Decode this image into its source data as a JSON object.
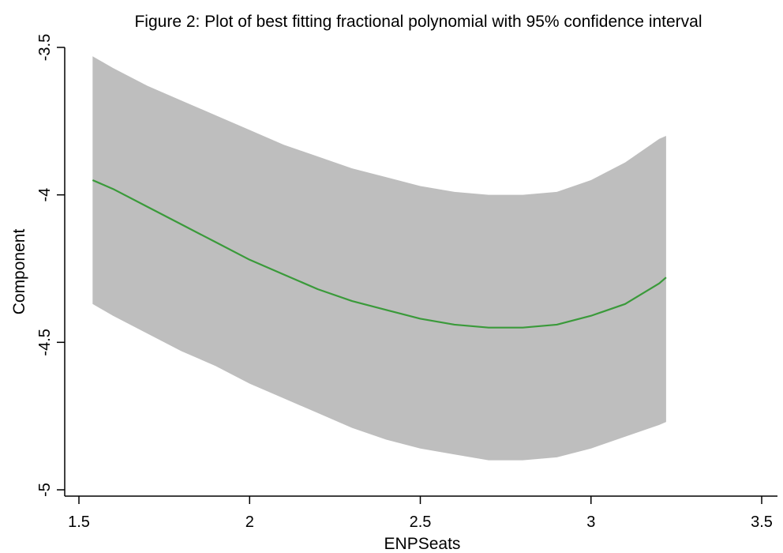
{
  "chart_data": {
    "type": "area",
    "title": "Figure 2: Plot of best fitting fractional polynomial with 95% confidence interval",
    "xlabel": "ENPSeats",
    "ylabel": "Component",
    "xlim": [
      1.5,
      3.5
    ],
    "ylim": [
      -5,
      -3.5
    ],
    "x_ticks": [
      1.5,
      2,
      2.5,
      3,
      3.5
    ],
    "x_tick_labels": [
      "1.5",
      "2",
      "2.5",
      "3",
      "3.5"
    ],
    "y_ticks": [
      -5,
      -4.5,
      -4,
      -3.5
    ],
    "y_tick_labels": [
      "-5",
      "-4.5",
      "-4",
      "-3.5"
    ],
    "grid": false,
    "legend": "none",
    "colors": {
      "fit_line": "#3a9a3a",
      "ci_band": "#bebebe",
      "axis": "#000000"
    },
    "x": [
      1.54,
      1.6,
      1.7,
      1.8,
      1.9,
      2.0,
      2.1,
      2.2,
      2.3,
      2.4,
      2.5,
      2.6,
      2.7,
      2.8,
      2.9,
      3.0,
      3.1,
      3.2,
      3.22
    ],
    "series": [
      {
        "name": "",
        "role": "fit",
        "values": [
          -3.95,
          -3.98,
          -4.04,
          -4.1,
          -4.16,
          -4.22,
          -4.27,
          -4.32,
          -4.36,
          -4.39,
          -4.42,
          -4.44,
          -4.45,
          -4.45,
          -4.44,
          -4.41,
          -4.37,
          -4.3,
          -4.28
        ]
      },
      {
        "name": "",
        "role": "ci_upper",
        "values": [
          -3.53,
          -3.57,
          -3.63,
          -3.68,
          -3.73,
          -3.78,
          -3.83,
          -3.87,
          -3.91,
          -3.94,
          -3.97,
          -3.99,
          -4.0,
          -4.0,
          -3.99,
          -3.95,
          -3.89,
          -3.81,
          -3.8
        ]
      },
      {
        "name": "",
        "role": "ci_lower",
        "values": [
          -4.37,
          -4.41,
          -4.47,
          -4.53,
          -4.58,
          -4.64,
          -4.69,
          -4.74,
          -4.79,
          -4.83,
          -4.86,
          -4.88,
          -4.9,
          -4.9,
          -4.89,
          -4.86,
          -4.82,
          -4.78,
          -4.77
        ]
      }
    ]
  }
}
